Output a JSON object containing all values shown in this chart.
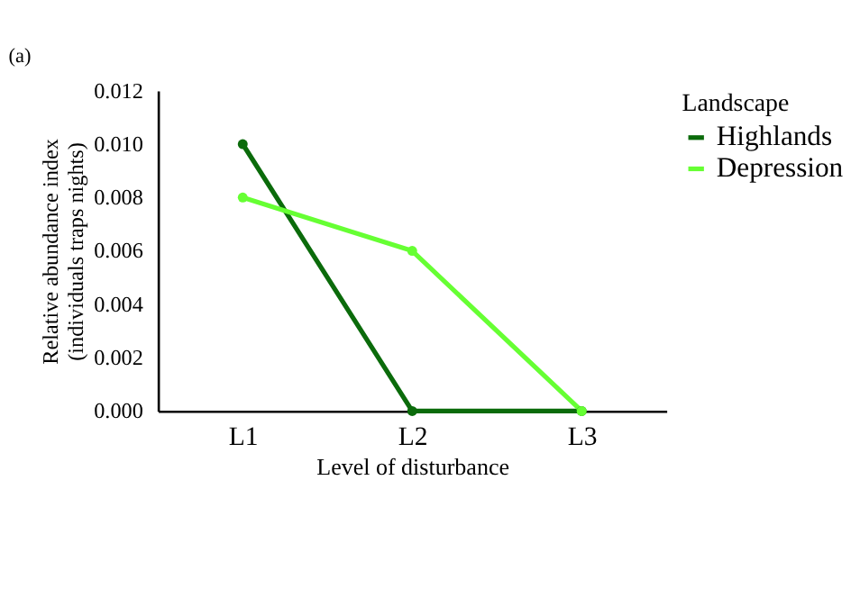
{
  "chart_data": {
    "type": "line",
    "title": "(a)",
    "xlabel": "Level of disturbance",
    "ylabel": "Relative abundance index\n(individuals traps nights)",
    "legend_title": "Landscape",
    "categories": [
      "L1",
      "L2",
      "L3"
    ],
    "series": [
      {
        "name": "Highlands",
        "color": "#0b6b0b",
        "values": [
          0.01,
          0.0,
          0.0
        ]
      },
      {
        "name": "Depression",
        "color": "#66ff33",
        "values": [
          0.008,
          0.006,
          0.0
        ]
      }
    ],
    "ylim": [
      0,
      0.012
    ],
    "yticks": [
      {
        "value": 0,
        "label": "0.000"
      },
      0.002,
      0.004,
      0.006,
      0.008,
      {
        "value": 0.01,
        "label": "0.010"
      },
      0.012
    ],
    "grid": false,
    "legend": "right",
    "marker": "circle",
    "line_style": "solid"
  }
}
